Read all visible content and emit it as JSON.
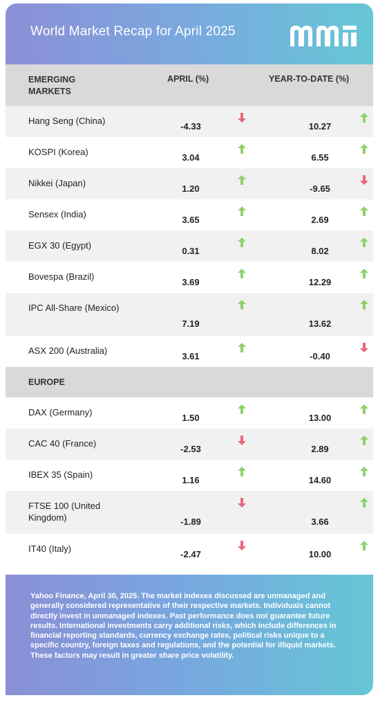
{
  "header": {
    "title": "World Market Recap for April 2025",
    "logo_text": "mmi"
  },
  "colors": {
    "up": "#8ed26b",
    "down": "#e8687a"
  },
  "emerging": {
    "heading": "EMERGING MARKETS",
    "col_april": "APRIL (%)",
    "col_ytd": "YEAR-TO-DATE (%)",
    "rows": [
      {
        "name": "Hang Seng (China)",
        "april": "-4.33",
        "april_dir": "down",
        "ytd": "10.27",
        "ytd_dir": "up"
      },
      {
        "name": "KOSPI (Korea)",
        "april": "3.04",
        "april_dir": "up",
        "ytd": "6.55",
        "ytd_dir": "up"
      },
      {
        "name": "Nikkei (Japan)",
        "april": "1.20",
        "april_dir": "up",
        "ytd": "-9.65",
        "ytd_dir": "down"
      },
      {
        "name": "Sensex (India)",
        "april": "3.65",
        "april_dir": "up",
        "ytd": "2.69",
        "ytd_dir": "up"
      },
      {
        "name": "EGX 30 (Egypt)",
        "april": "0.31",
        "april_dir": "up",
        "ytd": "8.02",
        "ytd_dir": "up"
      },
      {
        "name": "Bovespa (Brazil)",
        "april": "3.69",
        "april_dir": "up",
        "ytd": "12.29",
        "ytd_dir": "up"
      },
      {
        "name": "IPC All-Share (Mexico)",
        "april": "7.19",
        "april_dir": "up",
        "ytd": "13.62",
        "ytd_dir": "up"
      },
      {
        "name": "ASX 200 (Australia)",
        "april": "3.61",
        "april_dir": "up",
        "ytd": "-0.40",
        "ytd_dir": "down"
      }
    ]
  },
  "europe": {
    "heading": "EUROPE",
    "rows": [
      {
        "name": "DAX (Germany)",
        "april": "1.50",
        "april_dir": "up",
        "ytd": "13.00",
        "ytd_dir": "up"
      },
      {
        "name": "CAC 40 (France)",
        "april": "-2.53",
        "april_dir": "down",
        "ytd": "2.89",
        "ytd_dir": "up"
      },
      {
        "name": "IBEX 35 (Spain)",
        "april": "1.16",
        "april_dir": "up",
        "ytd": "14.60",
        "ytd_dir": "up"
      },
      {
        "name": "FTSE 100 (United Kingdom)",
        "april": "-1.89",
        "april_dir": "down",
        "ytd": "3.66",
        "ytd_dir": "up"
      },
      {
        "name": "IT40 (Italy)",
        "april": "-2.47",
        "april_dir": "down",
        "ytd": "10.00",
        "ytd_dir": "up"
      }
    ]
  },
  "footer": {
    "disclaimer": "Yahoo Finance, April 30, 2025. The market indexes discussed are unmanaged and generally considered representative of their respective markets. Individuals cannot directly invest in unmanaged indexes. Past performance does not guarantee future results. International investments carry additional risks, which include differences in financial reporting standards, currency exchange rates, political risks unique to a specific country, foreign taxes and regulations, and the potential for illiquid markets. These factors may result in greater share price volatility."
  }
}
